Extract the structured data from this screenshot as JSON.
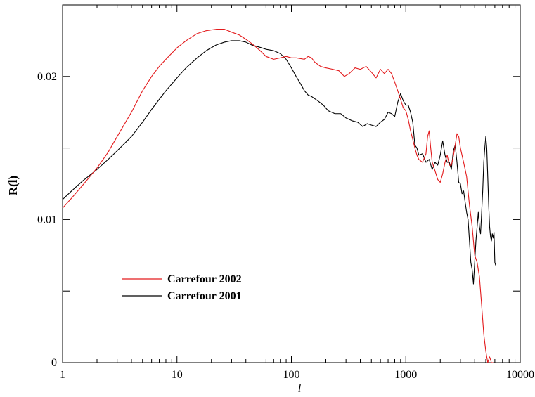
{
  "chart_data": {
    "type": "line",
    "title": "",
    "xlabel": "l",
    "ylabel": "R(l)",
    "x_scale": "log",
    "xlim": [
      1,
      10000
    ],
    "ylim": [
      0,
      0.025
    ],
    "x_ticks": [
      {
        "value": 1,
        "label": "1"
      },
      {
        "value": 10,
        "label": "10"
      },
      {
        "value": 100,
        "label": "100"
      },
      {
        "value": 1000,
        "label": "1000"
      },
      {
        "value": 10000,
        "label": "10000"
      }
    ],
    "y_ticks": [
      {
        "value": 0,
        "label": "0"
      },
      {
        "value": 0.005,
        "label": ""
      },
      {
        "value": 0.01,
        "label": "0.01"
      },
      {
        "value": 0.015,
        "label": ""
      },
      {
        "value": 0.02,
        "label": "0.02"
      }
    ],
    "grid": false,
    "legend_position": "lower-left",
    "series": [
      {
        "name": "Carrefour 2002",
        "color": "#e31a1c",
        "points": [
          [
            1,
            0.0108
          ],
          [
            1.2,
            0.0115
          ],
          [
            1.5,
            0.0124
          ],
          [
            2,
            0.0136
          ],
          [
            2.5,
            0.0147
          ],
          [
            3,
            0.0158
          ],
          [
            4,
            0.0175
          ],
          [
            5,
            0.019
          ],
          [
            6,
            0.02
          ],
          [
            7,
            0.0207
          ],
          [
            8,
            0.0212
          ],
          [
            10,
            0.022
          ],
          [
            12,
            0.0225
          ],
          [
            15,
            0.023
          ],
          [
            18,
            0.0232
          ],
          [
            22,
            0.0233
          ],
          [
            26,
            0.0233
          ],
          [
            30,
            0.0231
          ],
          [
            35,
            0.0229
          ],
          [
            40,
            0.0226
          ],
          [
            45,
            0.0223
          ],
          [
            50,
            0.022
          ],
          [
            55,
            0.0217
          ],
          [
            60,
            0.0214
          ],
          [
            70,
            0.0212
          ],
          [
            80,
            0.0213
          ],
          [
            90,
            0.0214
          ],
          [
            100,
            0.0213
          ],
          [
            110,
            0.0213
          ],
          [
            130,
            0.0212
          ],
          [
            140,
            0.0214
          ],
          [
            150,
            0.0213
          ],
          [
            160,
            0.021
          ],
          [
            180,
            0.0207
          ],
          [
            200,
            0.0206
          ],
          [
            230,
            0.0205
          ],
          [
            260,
            0.0204
          ],
          [
            290,
            0.02
          ],
          [
            320,
            0.0202
          ],
          [
            360,
            0.0206
          ],
          [
            400,
            0.0205
          ],
          [
            450,
            0.0207
          ],
          [
            500,
            0.0203
          ],
          [
            550,
            0.0199
          ],
          [
            600,
            0.0205
          ],
          [
            650,
            0.0202
          ],
          [
            700,
            0.0205
          ],
          [
            750,
            0.0202
          ],
          [
            800,
            0.0196
          ],
          [
            850,
            0.019
          ],
          [
            900,
            0.0184
          ],
          [
            950,
            0.0178
          ],
          [
            1000,
            0.0176
          ],
          [
            1050,
            0.017
          ],
          [
            1100,
            0.0162
          ],
          [
            1150,
            0.0156
          ],
          [
            1200,
            0.015
          ],
          [
            1250,
            0.0145
          ],
          [
            1300,
            0.0142
          ],
          [
            1400,
            0.014
          ],
          [
            1500,
            0.0146
          ],
          [
            1550,
            0.0158
          ],
          [
            1600,
            0.0162
          ],
          [
            1650,
            0.015
          ],
          [
            1700,
            0.014
          ],
          [
            1800,
            0.0134
          ],
          [
            1900,
            0.0128
          ],
          [
            2000,
            0.0126
          ],
          [
            2100,
            0.0132
          ],
          [
            2200,
            0.014
          ],
          [
            2300,
            0.0145
          ],
          [
            2400,
            0.0138
          ],
          [
            2500,
            0.0138
          ],
          [
            2600,
            0.0144
          ],
          [
            2700,
            0.0152
          ],
          [
            2800,
            0.016
          ],
          [
            2900,
            0.0158
          ],
          [
            3000,
            0.015
          ],
          [
            3200,
            0.014
          ],
          [
            3400,
            0.013
          ],
          [
            3600,
            0.011
          ],
          [
            3800,
            0.0095
          ],
          [
            4000,
            0.0075
          ],
          [
            4200,
            0.007
          ],
          [
            4400,
            0.006
          ],
          [
            4600,
            0.004
          ],
          [
            4800,
            0.002
          ],
          [
            5000,
            0.0008
          ],
          [
            5200,
            0.0
          ],
          [
            5400,
            0.0004
          ],
          [
            5600,
            0.0
          ],
          [
            5800,
            0.0
          ]
        ]
      },
      {
        "name": "Carrefour 2001",
        "color": "#000000",
        "points": [
          [
            1,
            0.0114
          ],
          [
            1.2,
            0.012
          ],
          [
            1.5,
            0.0127
          ],
          [
            2,
            0.0135
          ],
          [
            2.5,
            0.0142
          ],
          [
            3,
            0.0148
          ],
          [
            4,
            0.0158
          ],
          [
            5,
            0.0168
          ],
          [
            6,
            0.0177
          ],
          [
            7,
            0.0184
          ],
          [
            8,
            0.019
          ],
          [
            10,
            0.0199
          ],
          [
            12,
            0.0206
          ],
          [
            15,
            0.0213
          ],
          [
            18,
            0.0218
          ],
          [
            22,
            0.0222
          ],
          [
            26,
            0.0224
          ],
          [
            30,
            0.0225
          ],
          [
            35,
            0.0225
          ],
          [
            40,
            0.0224
          ],
          [
            45,
            0.0222
          ],
          [
            50,
            0.0221
          ],
          [
            55,
            0.022
          ],
          [
            60,
            0.0219
          ],
          [
            70,
            0.0218
          ],
          [
            80,
            0.0216
          ],
          [
            90,
            0.0212
          ],
          [
            100,
            0.0206
          ],
          [
            110,
            0.02
          ],
          [
            120,
            0.0195
          ],
          [
            130,
            0.019
          ],
          [
            140,
            0.0187
          ],
          [
            150,
            0.0186
          ],
          [
            170,
            0.0183
          ],
          [
            190,
            0.018
          ],
          [
            210,
            0.0176
          ],
          [
            240,
            0.0174
          ],
          [
            270,
            0.0174
          ],
          [
            300,
            0.0171
          ],
          [
            340,
            0.0169
          ],
          [
            380,
            0.0168
          ],
          [
            420,
            0.0165
          ],
          [
            460,
            0.0167
          ],
          [
            500,
            0.0166
          ],
          [
            550,
            0.0165
          ],
          [
            600,
            0.0168
          ],
          [
            650,
            0.017
          ],
          [
            700,
            0.0175
          ],
          [
            750,
            0.0174
          ],
          [
            800,
            0.0172
          ],
          [
            850,
            0.0182
          ],
          [
            900,
            0.0188
          ],
          [
            950,
            0.0183
          ],
          [
            1000,
            0.018
          ],
          [
            1050,
            0.018
          ],
          [
            1100,
            0.0175
          ],
          [
            1150,
            0.0168
          ],
          [
            1200,
            0.0152
          ],
          [
            1250,
            0.015
          ],
          [
            1300,
            0.0145
          ],
          [
            1400,
            0.0146
          ],
          [
            1500,
            0.014
          ],
          [
            1600,
            0.0142
          ],
          [
            1700,
            0.0135
          ],
          [
            1800,
            0.014
          ],
          [
            1900,
            0.0138
          ],
          [
            2000,
            0.0145
          ],
          [
            2100,
            0.0155
          ],
          [
            2200,
            0.0145
          ],
          [
            2300,
            0.014
          ],
          [
            2400,
            0.014
          ],
          [
            2500,
            0.0135
          ],
          [
            2600,
            0.0148
          ],
          [
            2700,
            0.0152
          ],
          [
            2800,
            0.014
          ],
          [
            2900,
            0.0126
          ],
          [
            3000,
            0.0125
          ],
          [
            3100,
            0.0118
          ],
          [
            3200,
            0.012
          ],
          [
            3300,
            0.0112
          ],
          [
            3400,
            0.0105
          ],
          [
            3500,
            0.01
          ],
          [
            3600,
            0.0085
          ],
          [
            3700,
            0.007
          ],
          [
            3800,
            0.0065
          ],
          [
            3900,
            0.0055
          ],
          [
            4000,
            0.007
          ],
          [
            4100,
            0.0085
          ],
          [
            4200,
            0.0095
          ],
          [
            4300,
            0.0105
          ],
          [
            4400,
            0.0095
          ],
          [
            4500,
            0.009
          ],
          [
            4600,
            0.0105
          ],
          [
            4700,
            0.012
          ],
          [
            4800,
            0.014
          ],
          [
            4900,
            0.015
          ],
          [
            5000,
            0.0158
          ],
          [
            5100,
            0.015
          ],
          [
            5200,
            0.013
          ],
          [
            5300,
            0.011
          ],
          [
            5400,
            0.0095
          ],
          [
            5500,
            0.0088
          ],
          [
            5600,
            0.0085
          ],
          [
            5700,
            0.009
          ],
          [
            5800,
            0.0087
          ],
          [
            5900,
            0.0091
          ],
          [
            6000,
            0.007
          ],
          [
            6100,
            0.0068
          ]
        ]
      }
    ]
  }
}
